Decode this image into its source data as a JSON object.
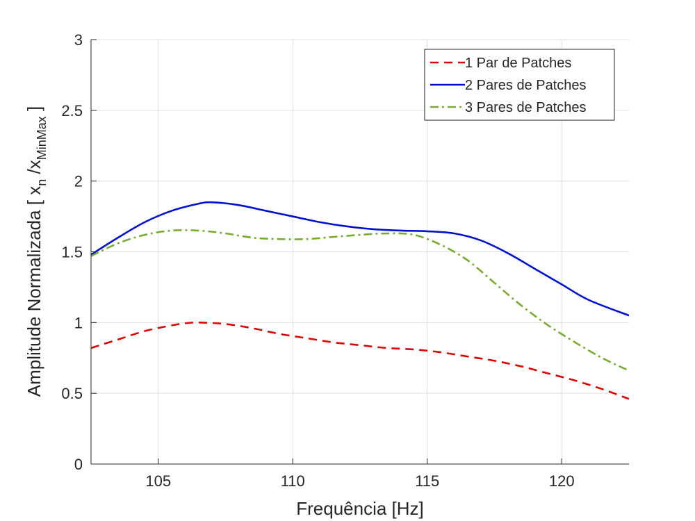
{
  "chart_data": {
    "type": "line",
    "title": "",
    "xlabel": "Frequência [Hz]",
    "ylabel_main": "Amplitude Normalizada [ x",
    "ylabel_sub1": "n",
    "ylabel_mid": " /x",
    "ylabel_sub2": "MinMax",
    "ylabel_end": " ]",
    "xlim": [
      102.5,
      122.5
    ],
    "ylim": [
      0,
      3
    ],
    "xticks": [
      105,
      110,
      115,
      120
    ],
    "yticks": [
      0,
      0.5,
      1,
      1.5,
      2,
      2.5,
      3
    ],
    "xtick_labels": [
      "105",
      "110",
      "115",
      "120"
    ],
    "ytick_labels": [
      "0",
      "0.5",
      "1",
      "1.5",
      "2",
      "2.5",
      "3"
    ],
    "grid": true,
    "legend_position": "top-right",
    "series": [
      {
        "name": "1 Par de Patches",
        "color": "#e00000",
        "style": "dashed",
        "x": [
          102.5,
          103.5,
          104.5,
          105.5,
          106.0,
          106.5,
          107.5,
          108.5,
          109.5,
          110.5,
          111.5,
          112.5,
          113.5,
          114.5,
          115.5,
          116.5,
          117.5,
          118.5,
          119.5,
          120.5,
          121.5,
          122.5
        ],
        "y": [
          0.82,
          0.88,
          0.94,
          0.98,
          0.995,
          1.0,
          0.99,
          0.96,
          0.92,
          0.89,
          0.86,
          0.84,
          0.82,
          0.81,
          0.79,
          0.76,
          0.73,
          0.69,
          0.64,
          0.59,
          0.53,
          0.46
        ]
      },
      {
        "name": "2 Pares de Patches",
        "color": "#0010d0",
        "style": "solid",
        "x": [
          102.5,
          103.5,
          104.5,
          105.5,
          106.5,
          107.0,
          108.0,
          109.0,
          110.0,
          111.0,
          112.0,
          113.0,
          114.0,
          115.0,
          116.0,
          117.0,
          118.0,
          119.0,
          120.0,
          121.0,
          122.5
        ],
        "y": [
          1.48,
          1.6,
          1.71,
          1.79,
          1.84,
          1.85,
          1.83,
          1.79,
          1.75,
          1.71,
          1.68,
          1.66,
          1.65,
          1.645,
          1.63,
          1.58,
          1.49,
          1.38,
          1.27,
          1.16,
          1.05
        ]
      },
      {
        "name": "3 Pares de Patches",
        "color": "#77ac30",
        "style": "dashdot",
        "x": [
          102.5,
          103.5,
          104.5,
          105.5,
          106.5,
          107.5,
          108.5,
          109.5,
          110.5,
          111.5,
          112.5,
          113.5,
          114.5,
          115.5,
          116.5,
          117.5,
          118.5,
          119.5,
          120.5,
          121.5,
          122.5
        ],
        "y": [
          1.47,
          1.56,
          1.62,
          1.65,
          1.65,
          1.63,
          1.6,
          1.59,
          1.59,
          1.605,
          1.62,
          1.63,
          1.62,
          1.55,
          1.44,
          1.28,
          1.12,
          0.98,
          0.86,
          0.75,
          0.66
        ]
      }
    ]
  }
}
